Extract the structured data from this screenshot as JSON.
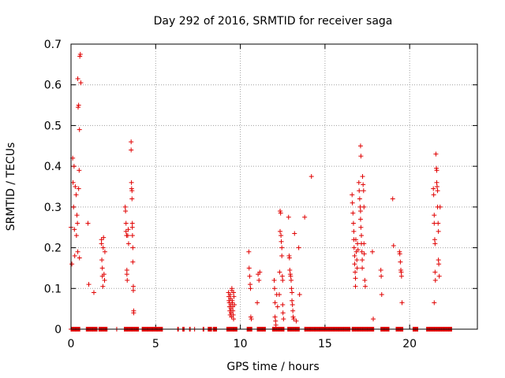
{
  "chart_data": {
    "type": "scatter",
    "title": "Day 292 of 2016, SRMTID for receiver saga",
    "xlabel": "GPS time / hours",
    "ylabel": "SRMTID / TECUs",
    "xlim": [
      0,
      24
    ],
    "ylim": [
      0,
      0.7
    ],
    "xticks": [
      0,
      5,
      10,
      15,
      20
    ],
    "yticks": [
      0,
      0.1,
      0.2,
      0.3,
      0.4,
      0.5,
      0.6,
      0.7
    ],
    "xtick_labels": [
      "0",
      "5",
      "10",
      "15",
      "20"
    ],
    "ytick_labels": [
      "0",
      "0.1",
      "0.2",
      "0.3",
      "0.4",
      "0.5",
      "0.6",
      "0.7"
    ],
    "grid": true,
    "marker": "+",
    "color": "#e00000",
    "series": [
      {
        "name": "SRMTID",
        "points": [
          [
            0.0,
            0.25
          ],
          [
            0.05,
            0.16
          ],
          [
            0.1,
            0.42
          ],
          [
            0.12,
            0.36
          ],
          [
            0.15,
            0.3
          ],
          [
            0.18,
            0.4
          ],
          [
            0.2,
            0.245
          ],
          [
            0.22,
            0.18
          ],
          [
            0.25,
            0.35
          ],
          [
            0.3,
            0.33
          ],
          [
            0.32,
            0.23
          ],
          [
            0.35,
            0.28
          ],
          [
            0.38,
            0.26
          ],
          [
            0.4,
            0.19
          ],
          [
            0.4,
            0.615
          ],
          [
            0.42,
            0.545
          ],
          [
            0.45,
            0.55
          ],
          [
            0.45,
            0.345
          ],
          [
            0.48,
            0.39
          ],
          [
            0.5,
            0.49
          ],
          [
            0.5,
            0.175
          ],
          [
            0.52,
            0.67
          ],
          [
            0.55,
            0.675
          ],
          [
            0.58,
            0.605
          ],
          [
            1.0,
            0.26
          ],
          [
            1.05,
            0.11
          ],
          [
            1.35,
            0.09
          ],
          [
            1.8,
            0.22
          ],
          [
            1.8,
            0.21
          ],
          [
            1.82,
            0.17
          ],
          [
            1.85,
            0.15
          ],
          [
            1.85,
            0.13
          ],
          [
            1.88,
            0.105
          ],
          [
            1.9,
            0.2
          ],
          [
            1.92,
            0.225
          ],
          [
            1.95,
            0.135
          ],
          [
            1.98,
            0.12
          ],
          [
            2.0,
            0.19
          ],
          [
            3.2,
            0.3
          ],
          [
            3.22,
            0.29
          ],
          [
            3.25,
            0.26
          ],
          [
            3.25,
            0.24
          ],
          [
            3.28,
            0.23
          ],
          [
            3.3,
            0.145
          ],
          [
            3.3,
            0.135
          ],
          [
            3.32,
            0.12
          ],
          [
            3.35,
            0.23
          ],
          [
            3.38,
            0.245
          ],
          [
            3.4,
            0.21
          ],
          [
            3.55,
            0.46
          ],
          [
            3.55,
            0.44
          ],
          [
            3.57,
            0.36
          ],
          [
            3.58,
            0.345
          ],
          [
            3.6,
            0.34
          ],
          [
            3.6,
            0.32
          ],
          [
            3.62,
            0.26
          ],
          [
            3.62,
            0.25
          ],
          [
            3.63,
            0.23
          ],
          [
            3.65,
            0.2
          ],
          [
            3.65,
            0.165
          ],
          [
            3.68,
            0.105
          ],
          [
            3.68,
            0.095
          ],
          [
            3.7,
            0.045
          ],
          [
            3.7,
            0.04
          ],
          [
            9.3,
            0.09
          ],
          [
            9.32,
            0.08
          ],
          [
            9.33,
            0.07
          ],
          [
            9.35,
            0.065
          ],
          [
            9.36,
            0.055
          ],
          [
            9.38,
            0.045
          ],
          [
            9.4,
            0.035
          ],
          [
            9.4,
            0.085
          ],
          [
            9.42,
            0.075
          ],
          [
            9.44,
            0.06
          ],
          [
            9.45,
            0.05
          ],
          [
            9.46,
            0.04
          ],
          [
            9.48,
            0.03
          ],
          [
            9.5,
            0.1
          ],
          [
            9.5,
            0.095
          ],
          [
            9.52,
            0.07
          ],
          [
            9.53,
            0.065
          ],
          [
            9.55,
            0.055
          ],
          [
            9.56,
            0.045
          ],
          [
            9.58,
            0.035
          ],
          [
            9.6,
            0.025
          ],
          [
            9.6,
            0.09
          ],
          [
            9.62,
            0.08
          ],
          [
            9.65,
            0.06
          ],
          [
            10.5,
            0.19
          ],
          [
            10.52,
            0.15
          ],
          [
            10.55,
            0.13
          ],
          [
            10.58,
            0.11
          ],
          [
            10.6,
            0.1
          ],
          [
            10.62,
            0.03
          ],
          [
            10.65,
            0.025
          ],
          [
            11.0,
            0.065
          ],
          [
            11.05,
            0.135
          ],
          [
            11.1,
            0.12
          ],
          [
            11.15,
            0.14
          ],
          [
            12.0,
            0.12
          ],
          [
            12.02,
            0.1
          ],
          [
            12.05,
            0.065
          ],
          [
            12.05,
            0.03
          ],
          [
            12.08,
            0.02
          ],
          [
            12.1,
            0.01
          ],
          [
            12.15,
            0.085
          ],
          [
            12.2,
            0.055
          ],
          [
            12.3,
            0.085
          ],
          [
            12.32,
            0.14
          ],
          [
            12.35,
            0.24
          ],
          [
            12.35,
            0.29
          ],
          [
            12.38,
            0.285
          ],
          [
            12.4,
            0.23
          ],
          [
            12.42,
            0.215
          ],
          [
            12.45,
            0.2
          ],
          [
            12.45,
            0.18
          ],
          [
            12.48,
            0.13
          ],
          [
            12.5,
            0.12
          ],
          [
            12.5,
            0.06
          ],
          [
            12.52,
            0.04
          ],
          [
            12.55,
            0.025
          ],
          [
            12.85,
            0.275
          ],
          [
            12.88,
            0.18
          ],
          [
            12.9,
            0.175
          ],
          [
            12.92,
            0.145
          ],
          [
            12.95,
            0.135
          ],
          [
            12.97,
            0.13
          ],
          [
            13.0,
            0.12
          ],
          [
            13.02,
            0.1
          ],
          [
            13.05,
            0.09
          ],
          [
            13.05,
            0.07
          ],
          [
            13.08,
            0.06
          ],
          [
            13.1,
            0.045
          ],
          [
            13.12,
            0.03
          ],
          [
            13.15,
            0.025
          ],
          [
            13.2,
            0.235
          ],
          [
            13.3,
            0.02
          ],
          [
            13.45,
            0.2
          ],
          [
            13.5,
            0.085
          ],
          [
            13.8,
            0.275
          ],
          [
            14.2,
            0.375
          ],
          [
            16.6,
            0.33
          ],
          [
            16.62,
            0.31
          ],
          [
            16.65,
            0.285
          ],
          [
            16.68,
            0.26
          ],
          [
            16.7,
            0.24
          ],
          [
            16.7,
            0.22
          ],
          [
            16.72,
            0.2
          ],
          [
            16.75,
            0.18
          ],
          [
            16.75,
            0.16
          ],
          [
            16.78,
            0.14
          ],
          [
            16.8,
            0.125
          ],
          [
            16.8,
            0.105
          ],
          [
            16.82,
            0.22
          ],
          [
            16.85,
            0.19
          ],
          [
            16.88,
            0.17
          ],
          [
            16.9,
            0.15
          ],
          [
            16.92,
            0.21
          ],
          [
            16.95,
            0.195
          ],
          [
            17.0,
            0.36
          ],
          [
            17.02,
            0.34
          ],
          [
            17.05,
            0.32
          ],
          [
            17.08,
            0.3
          ],
          [
            17.1,
            0.29
          ],
          [
            17.1,
            0.27
          ],
          [
            17.12,
            0.25
          ],
          [
            17.15,
            0.23
          ],
          [
            17.15,
            0.21
          ],
          [
            17.18,
            0.19
          ],
          [
            17.2,
            0.17
          ],
          [
            17.2,
            0.15
          ],
          [
            17.1,
            0.45
          ],
          [
            17.12,
            0.425
          ],
          [
            17.22,
            0.375
          ],
          [
            17.25,
            0.355
          ],
          [
            17.28,
            0.34
          ],
          [
            17.3,
            0.3
          ],
          [
            17.3,
            0.21
          ],
          [
            17.32,
            0.185
          ],
          [
            17.35,
            0.12
          ],
          [
            17.38,
            0.105
          ],
          [
            17.8,
            0.19
          ],
          [
            17.85,
            0.025
          ],
          [
            18.3,
            0.145
          ],
          [
            18.32,
            0.13
          ],
          [
            18.35,
            0.085
          ],
          [
            19.0,
            0.32
          ],
          [
            19.05,
            0.205
          ],
          [
            19.4,
            0.19
          ],
          [
            19.42,
            0.185
          ],
          [
            19.45,
            0.165
          ],
          [
            19.48,
            0.145
          ],
          [
            19.5,
            0.14
          ],
          [
            19.52,
            0.13
          ],
          [
            19.55,
            0.065
          ],
          [
            21.4,
            0.345
          ],
          [
            21.42,
            0.33
          ],
          [
            21.45,
            0.28
          ],
          [
            21.45,
            0.26
          ],
          [
            21.48,
            0.22
          ],
          [
            21.5,
            0.21
          ],
          [
            21.5,
            0.14
          ],
          [
            21.52,
            0.12
          ],
          [
            21.45,
            0.065
          ],
          [
            21.55,
            0.43
          ],
          [
            21.58,
            0.395
          ],
          [
            21.6,
            0.39
          ],
          [
            21.6,
            0.36
          ],
          [
            21.62,
            0.35
          ],
          [
            21.65,
            0.34
          ],
          [
            21.65,
            0.3
          ],
          [
            21.68,
            0.26
          ],
          [
            21.7,
            0.24
          ],
          [
            21.7,
            0.17
          ],
          [
            21.72,
            0.16
          ],
          [
            21.75,
            0.13
          ],
          [
            21.8,
            0.3
          ]
        ],
        "zero_ranges": [
          [
            0.0,
            0.55
          ],
          [
            0.9,
            1.55
          ],
          [
            1.65,
            2.15
          ],
          [
            2.7,
            2.72
          ],
          [
            3.15,
            4.0
          ],
          [
            4.2,
            5.4
          ],
          [
            6.3,
            6.35
          ],
          [
            6.6,
            6.7
          ],
          [
            7.0,
            7.05
          ],
          [
            7.3,
            7.32
          ],
          [
            7.8,
            7.85
          ],
          [
            8.1,
            8.3
          ],
          [
            8.4,
            8.6
          ],
          [
            9.2,
            9.8
          ],
          [
            10.4,
            10.7
          ],
          [
            11.0,
            11.5
          ],
          [
            11.9,
            12.6
          ],
          [
            12.8,
            13.5
          ],
          [
            13.8,
            16.5
          ],
          [
            16.6,
            17.9
          ],
          [
            18.3,
            18.8
          ],
          [
            19.2,
            19.6
          ],
          [
            20.2,
            20.5
          ],
          [
            21.0,
            22.5
          ]
        ]
      }
    ]
  }
}
